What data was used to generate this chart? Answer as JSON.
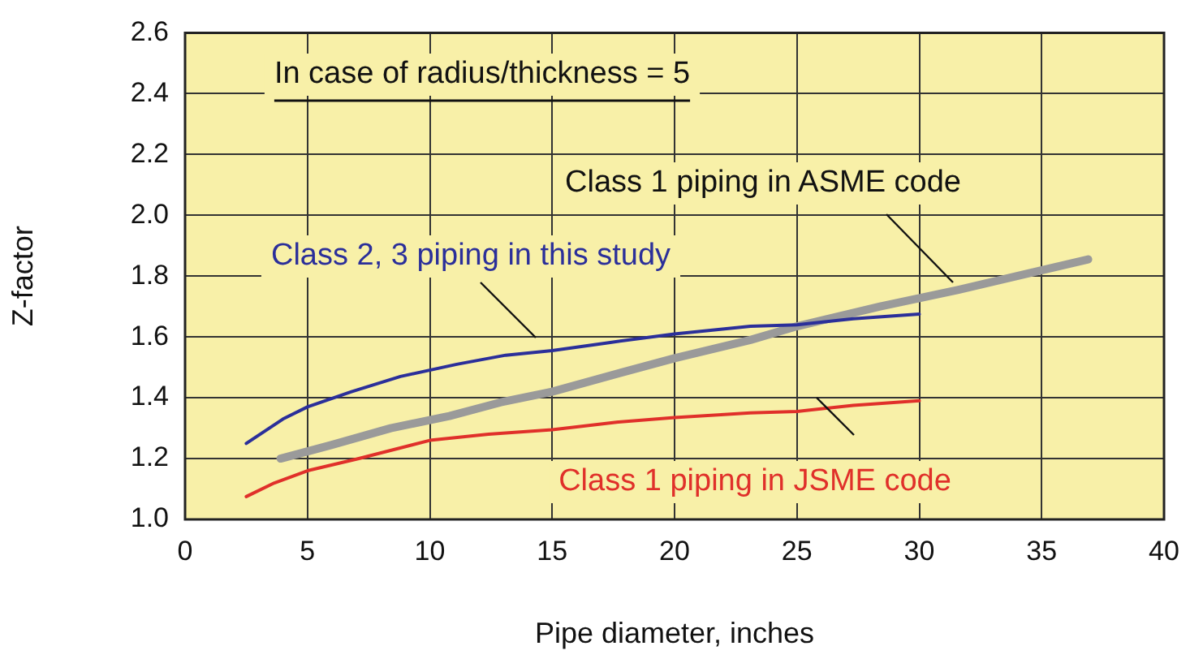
{
  "chart_data": {
    "type": "line",
    "xlabel": "Pipe diameter, inches",
    "ylabel": "Z-factor",
    "annotations": [
      "In case of radius/thickness = 5"
    ],
    "xlim": [
      0,
      40
    ],
    "xticks": [
      0,
      5,
      10,
      15,
      20,
      25,
      30,
      35,
      40
    ],
    "ylim": [
      1.0,
      2.6
    ],
    "yticks": [
      {
        "value": 1,
        "label": "1.0"
      },
      1.2,
      1.4,
      1.6,
      1.8,
      {
        "value": 2,
        "label": "2.0"
      },
      2.2,
      2.4,
      2.6
    ],
    "grid": true,
    "legend": false,
    "marker": "none",
    "line_style": "solid",
    "series": [
      {
        "name": "Class 2, 3 piping in this study",
        "color": "#2b2f9a",
        "x": [
          2.5,
          4.0,
          5,
          6.8,
          8.8,
          11.1,
          13.1,
          15,
          17.2,
          20,
          23.1,
          25,
          27.3,
          30
        ],
        "values": [
          1.25,
          1.33,
          1.37,
          1.42,
          1.47,
          1.51,
          1.54,
          1.555,
          1.58,
          1.61,
          1.635,
          1.64,
          1.66,
          1.675
        ]
      },
      {
        "name": "Class 1 piping in ASME code",
        "color": "#9a9a9a",
        "x": [
          3.9,
          6.0,
          8.4,
          10.8,
          12.9,
          15,
          17.7,
          20,
          23.1,
          25,
          28.4,
          31.6,
          36.9
        ],
        "values": [
          1.2,
          1.245,
          1.3,
          1.34,
          1.385,
          1.42,
          1.48,
          1.53,
          1.59,
          1.635,
          1.7,
          1.755,
          1.855
        ]
      },
      {
        "name": "Class 1 piping in JSME code",
        "color": "#e0302a",
        "x": [
          2.5,
          3.65,
          5,
          7.1,
          10,
          12.4,
          15,
          17.7,
          20,
          23.1,
          25,
          27.3,
          30
        ],
        "values": [
          1.075,
          1.12,
          1.16,
          1.2,
          1.26,
          1.28,
          1.295,
          1.32,
          1.335,
          1.35,
          1.355,
          1.375,
          1.39
        ]
      }
    ]
  }
}
